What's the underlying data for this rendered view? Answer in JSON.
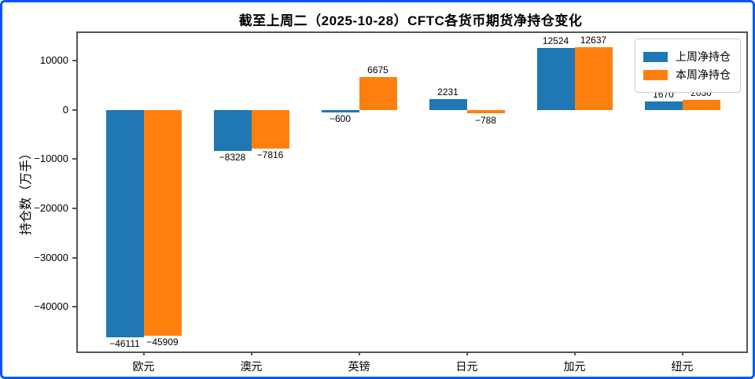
{
  "frame": {
    "border_color": "#0057ff",
    "background": "#ffffff",
    "axes_color": "#555555"
  },
  "chart_data": {
    "type": "bar",
    "title": "截至上周二（2025-10-28）CFTC各货币期货净持仓变化",
    "ylabel": "持仓数（万手）",
    "xlabel": "",
    "categories": [
      "欧元",
      "澳元",
      "英镑",
      "日元",
      "加元",
      "纽元"
    ],
    "series": [
      {
        "name": "上周净持仓",
        "color": "#1f77b4",
        "values": [
          -46111,
          -8328,
          -600,
          2231,
          12524,
          1670
        ]
      },
      {
        "name": "本周净持仓",
        "color": "#ff7f0e",
        "values": [
          -45909,
          -7816,
          6675,
          -788,
          12637,
          2030
        ]
      }
    ],
    "yticks": [
      10000,
      0,
      -10000,
      -20000,
      -30000,
      -40000
    ],
    "ylim": [
      -49050,
      15580
    ],
    "legend_position": "upper right",
    "grid": false,
    "bar_value_labels": true
  }
}
